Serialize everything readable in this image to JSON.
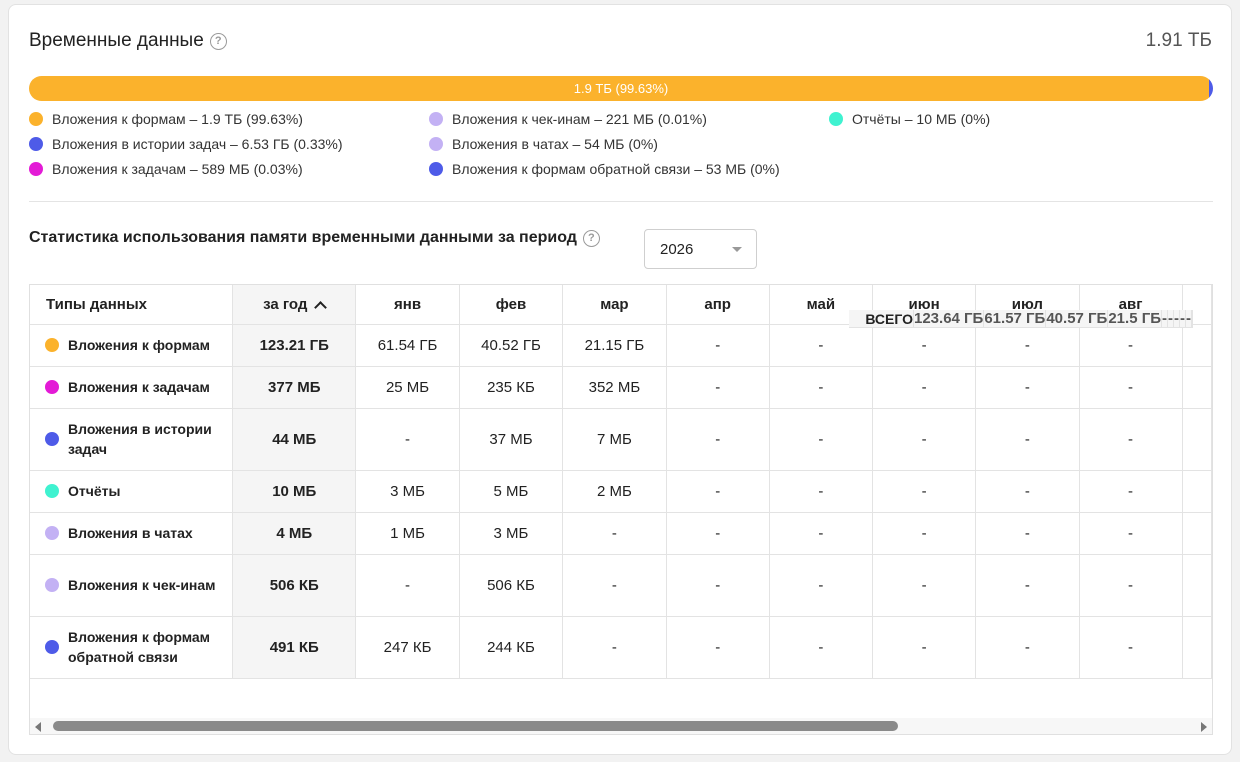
{
  "header": {
    "title": "Временные данные",
    "help_icon": "question-circle-icon",
    "total": "1.91 ТБ"
  },
  "bar": {
    "label": "1.9 ТБ (99.63%)",
    "segments": [
      {
        "name": "Вложения к формам",
        "percent": 99.63,
        "color": "#fbb22c"
      },
      {
        "name": "Вложения в истории задач",
        "percent": 0.33,
        "color": "#4e5be8"
      },
      {
        "name": "Вложения к задачам",
        "percent": 0.03,
        "color": "#e31bd6"
      },
      {
        "name": "Вложения к чек-инам",
        "percent": 0.01,
        "color": "#c3b1f4"
      }
    ]
  },
  "legend": [
    {
      "text": "Вложения к формам – 1.9 ТБ (99.63%)",
      "color": "#fbb22c"
    },
    {
      "text": "Вложения в истории задач – 6.53 ГБ (0.33%)",
      "color": "#4e5be8"
    },
    {
      "text": "Вложения к задачам – 589 МБ (0.03%)",
      "color": "#e31bd6"
    },
    {
      "text": "Вложения к чек-инам – 221 МБ (0.01%)",
      "color": "#c3b1f4"
    },
    {
      "text": "Вложения в чатах – 54 МБ (0%)",
      "color": "#c3b1f4"
    },
    {
      "text": "Вложения к формам обратной связи – 53 МБ (0%)",
      "color": "#4e5be8"
    },
    {
      "text": "Отчёты – 10 МБ (0%)",
      "color": "#3ff2d0"
    }
  ],
  "stats": {
    "title": "Статистика использования памяти временными данными за период",
    "year_select": "2026"
  },
  "table": {
    "columns": [
      "Типы данных",
      "за год",
      "янв",
      "фев",
      "мар",
      "апр",
      "май",
      "июн",
      "июл",
      "авг"
    ],
    "rows": [
      {
        "name": "Вложения к формам",
        "color": "#fbb22c",
        "year": "123.21 ГБ",
        "months": [
          "61.54 ГБ",
          "40.52 ГБ",
          "21.15 ГБ",
          "-",
          "-",
          "-",
          "-",
          "-"
        ]
      },
      {
        "name": "Вложения к задачам",
        "color": "#e31bd6",
        "year": "377 МБ",
        "months": [
          "25 МБ",
          "235 КБ",
          "352 МБ",
          "-",
          "-",
          "-",
          "-",
          "-"
        ]
      },
      {
        "name": "Вложения в истории задач",
        "color": "#4e5be8",
        "year": "44 МБ",
        "months": [
          "-",
          "37 МБ",
          "7 МБ",
          "-",
          "-",
          "-",
          "-",
          "-"
        ]
      },
      {
        "name": "Отчёты",
        "color": "#3ff2d0",
        "year": "10 МБ",
        "months": [
          "3 МБ",
          "5 МБ",
          "2 МБ",
          "-",
          "-",
          "-",
          "-",
          "-"
        ]
      },
      {
        "name": "Вложения в чатах",
        "color": "#c3b1f4",
        "year": "4 МБ",
        "months": [
          "1 МБ",
          "3 МБ",
          "-",
          "-",
          "-",
          "-",
          "-",
          "-"
        ]
      },
      {
        "name": "Вложения к чек-инам",
        "color": "#c3b1f4",
        "year": "506 КБ",
        "months": [
          "-",
          "506 КБ",
          "-",
          "-",
          "-",
          "-",
          "-",
          "-"
        ]
      },
      {
        "name": "Вложения к формам обратной связи",
        "color": "#4e5be8",
        "year": "491 КБ",
        "months": [
          "247 КБ",
          "244 КБ",
          "-",
          "-",
          "-",
          "-",
          "-",
          "-"
        ]
      }
    ],
    "total": {
      "name": "ВСЕГО",
      "year": "123.64 ГБ",
      "months": [
        "61.57 ГБ",
        "40.57 ГБ",
        "21.5 ГБ",
        "-",
        "-",
        "-",
        "-",
        "-"
      ]
    }
  }
}
